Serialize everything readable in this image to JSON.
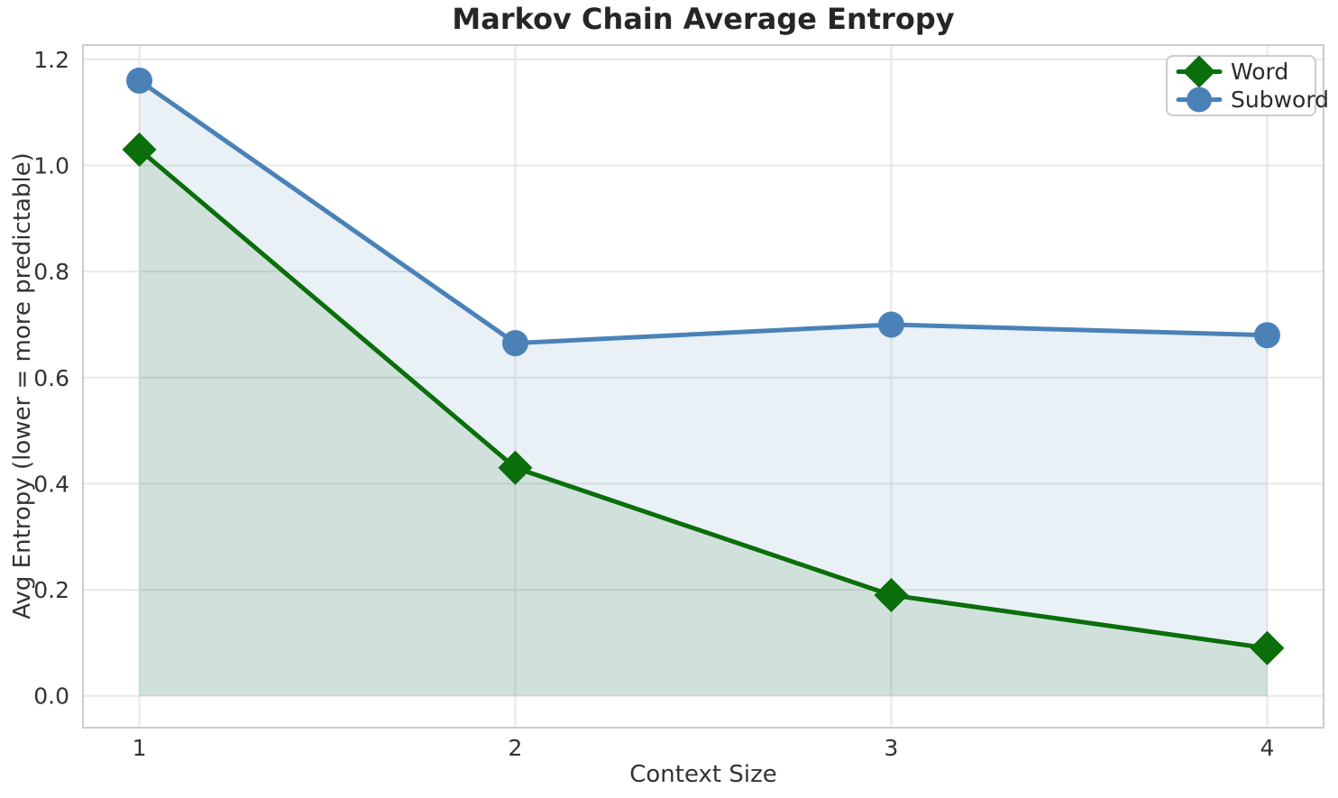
{
  "chart_data": {
    "type": "line",
    "title": "Markov Chain Average Entropy",
    "xlabel": "Context Size",
    "ylabel": "Avg Entropy (lower = more predictable)",
    "x": [
      1,
      2,
      3,
      4
    ],
    "xtick_labels": [
      "1",
      "2",
      "3",
      "4"
    ],
    "ytick_values": [
      0.0,
      0.2,
      0.4,
      0.6,
      0.8,
      1.0,
      1.2
    ],
    "ytick_labels": [
      "0.0",
      "0.2",
      "0.4",
      "0.6",
      "0.8",
      "1.0",
      "1.2"
    ],
    "xlim": [
      0.85,
      4.15
    ],
    "ylim": [
      -0.06,
      1.227
    ],
    "grid": true,
    "legend_position": "upper right",
    "series": [
      {
        "name": "Word",
        "marker": "diamond",
        "color": "#0a6e0a",
        "area_fill": "rgba(10,110,10,0.11)",
        "values": [
          1.03,
          0.43,
          0.19,
          0.09
        ]
      },
      {
        "name": "Subword",
        "marker": "circle",
        "color": "#4a82b8",
        "area_fill": "rgba(70,130,180,0.12)",
        "values": [
          1.16,
          0.665,
          0.7,
          0.68
        ]
      }
    ]
  },
  "style": {
    "background": "#ffffff",
    "grid_color": "#e7e7e7",
    "spine_color": "#cccccc",
    "tick_text_color": "#333333",
    "title_color": "#262626"
  }
}
